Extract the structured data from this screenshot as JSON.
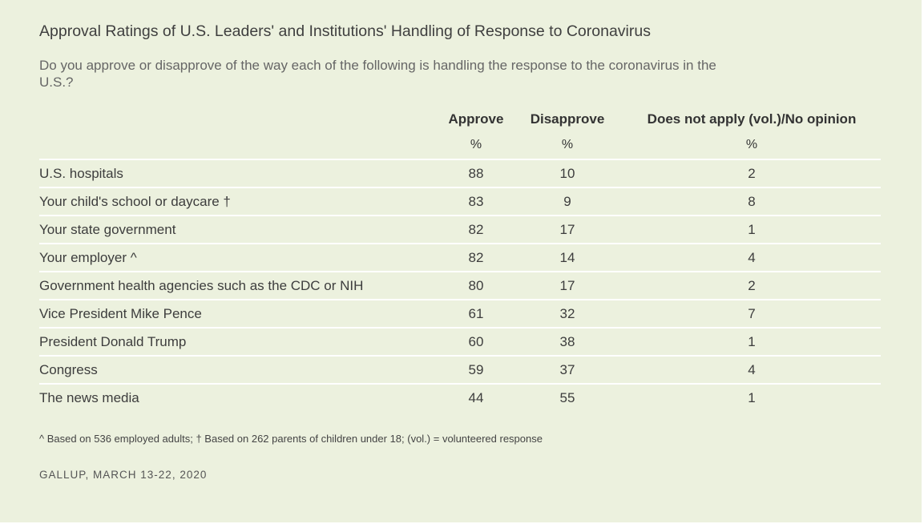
{
  "chart_data": {
    "type": "table",
    "title": "Approval Ratings of U.S. Leaders' and Institutions' Handling of Response to Coronavirus",
    "subtitle": "Do you approve or disapprove of the way each of the following is handling the response to the coronavirus in the U.S.?",
    "columns": [
      {
        "label": "Approve",
        "unit": "%"
      },
      {
        "label": "Disapprove",
        "unit": "%"
      },
      {
        "label": "Does not apply (vol.)/No opinion",
        "unit": "%"
      }
    ],
    "rows": [
      {
        "label": "U.S. hospitals",
        "values": [
          88,
          10,
          2
        ]
      },
      {
        "label": "Your child's school or daycare †",
        "values": [
          83,
          9,
          8
        ]
      },
      {
        "label": "Your state government",
        "values": [
          82,
          17,
          1
        ]
      },
      {
        "label": "Your employer ^",
        "values": [
          82,
          14,
          4
        ]
      },
      {
        "label": "Government health agencies such as the CDC or NIH",
        "values": [
          80,
          17,
          2
        ]
      },
      {
        "label": "Vice President Mike Pence",
        "values": [
          61,
          32,
          7
        ]
      },
      {
        "label": "President Donald Trump",
        "values": [
          60,
          38,
          1
        ]
      },
      {
        "label": "Congress",
        "values": [
          59,
          37,
          4
        ]
      },
      {
        "label": "The news media",
        "values": [
          44,
          55,
          1
        ]
      }
    ],
    "footnote": "^ Based on 536 employed adults; † Based on 262 parents of children under 18; (vol.) = volunteered response",
    "source": "GALLUP, MARCH 13-22, 2020"
  },
  "colors": {
    "background": "#ecf1de",
    "divider": "#ffffff",
    "text": "#3d3d3d"
  }
}
